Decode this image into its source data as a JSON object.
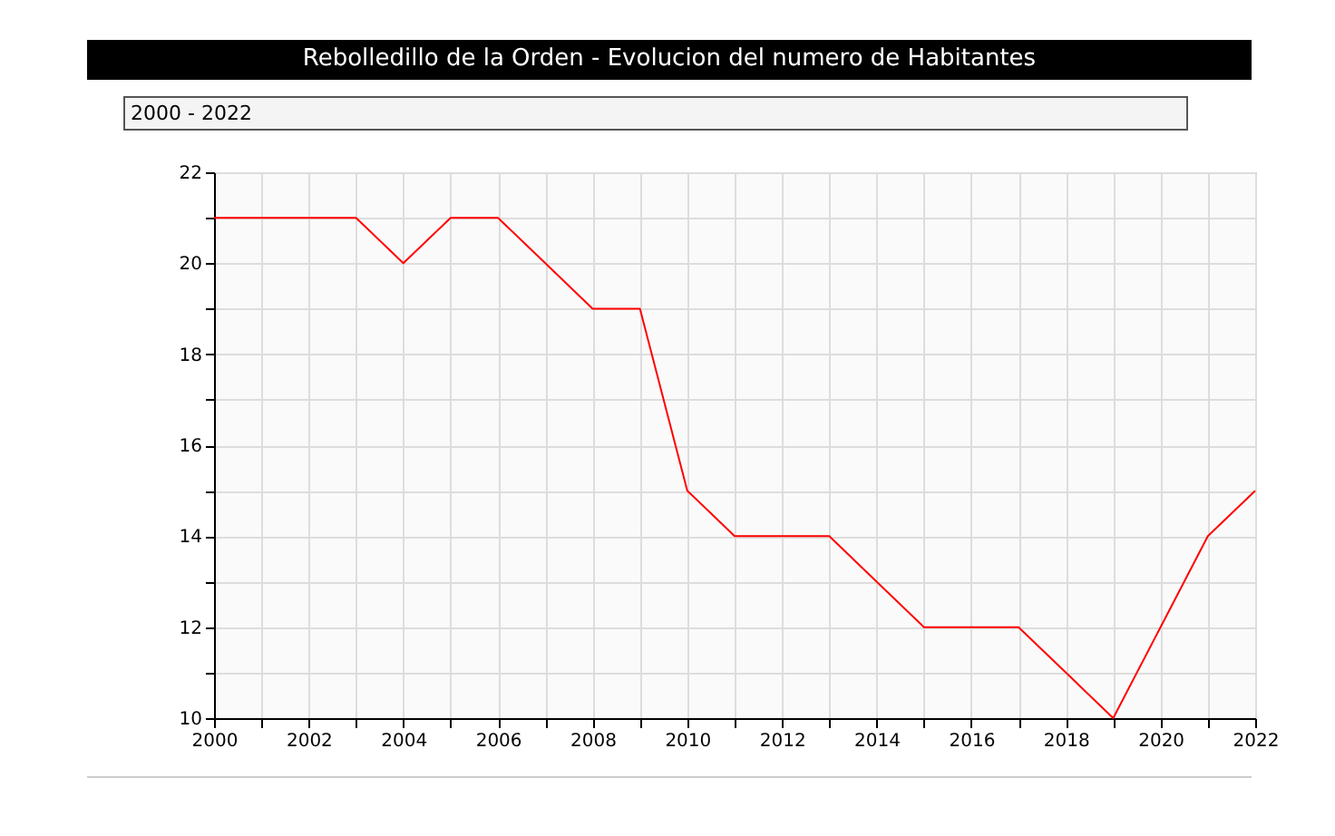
{
  "chart_data": {
    "type": "line",
    "title": "Rebolledillo de la Orden - Evolucion del numero de Habitantes",
    "subtitle": "2000 - 2022",
    "x": [
      2000,
      2001,
      2002,
      2003,
      2004,
      2005,
      2006,
      2007,
      2008,
      2009,
      2010,
      2011,
      2012,
      2013,
      2014,
      2015,
      2016,
      2017,
      2018,
      2019,
      2020,
      2021,
      2022
    ],
    "series": [
      {
        "color": "#ff0000",
        "values": [
          21,
          21,
          21,
          21,
          20,
          21,
          21,
          20,
          19,
          19,
          15,
          14,
          14,
          14,
          13,
          12,
          12,
          12,
          11,
          10,
          12,
          14,
          15
        ]
      }
    ],
    "xlim": [
      2000,
      2022
    ],
    "xticks": [
      2000,
      {
        "value": 2001,
        "label": null
      },
      2002,
      {
        "value": 2003,
        "label": null
      },
      2004,
      {
        "value": 2005,
        "label": null
      },
      2006,
      {
        "value": 2007,
        "label": null
      },
      2008,
      {
        "value": 2009,
        "label": null
      },
      2010,
      {
        "value": 2011,
        "label": null
      },
      2012,
      {
        "value": 2013,
        "label": null
      },
      2014,
      {
        "value": 2015,
        "label": null
      },
      2016,
      {
        "value": 2017,
        "label": null
      },
      2018,
      {
        "value": 2019,
        "label": null
      },
      2020,
      {
        "value": 2021,
        "label": null
      },
      2022
    ],
    "ylim": [
      10,
      22
    ],
    "yticks": [
      10,
      {
        "value": 11,
        "label": null
      },
      12,
      {
        "value": 13,
        "label": null
      },
      14,
      {
        "value": 15,
        "label": null
      },
      16,
      {
        "value": 17,
        "label": null
      },
      18,
      {
        "value": 19,
        "label": null
      },
      20,
      {
        "value": 21,
        "label": null
      },
      22
    ],
    "grid": true,
    "marker": "none",
    "line_style": "solid"
  }
}
